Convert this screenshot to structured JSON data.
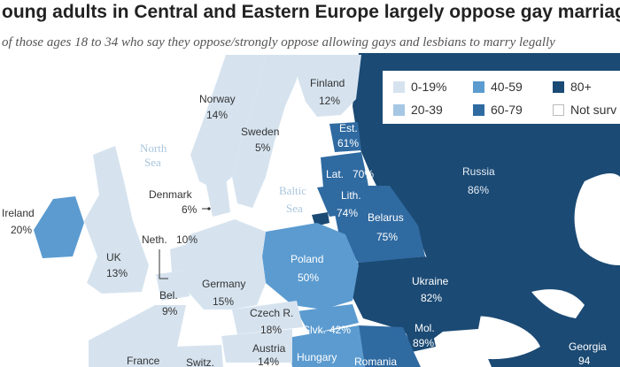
{
  "title": "oung adults in Central and Eastern Europe largely oppose gay marriage",
  "subtitle": "of those ages 18 to 34 who say they oppose/strongly oppose allowing gays and lesbians to marry legally",
  "legend": {
    "items": [
      {
        "label": "0-19%",
        "color": "#d6e3ef"
      },
      {
        "label": "40-59",
        "color": "#5b9bd0"
      },
      {
        "label": "80+",
        "color": "#1b4a74"
      },
      {
        "label": "20-39",
        "color": "#a6c7e4"
      },
      {
        "label": "60-79",
        "color": "#2f6aa1"
      },
      {
        "label": "Not surv",
        "color": "#ffffff"
      }
    ]
  },
  "seas": {
    "north": [
      "North",
      "Sea"
    ],
    "baltic": [
      "Baltic",
      "Sea"
    ]
  },
  "countries": [
    {
      "name": "Finland",
      "value": "12%",
      "bin": "0-19"
    },
    {
      "name": "Norway",
      "value": "14%",
      "bin": "0-19"
    },
    {
      "name": "Sweden",
      "value": "5%",
      "bin": "0-19"
    },
    {
      "name": "Est.",
      "value": "61%",
      "bin": "60-79"
    },
    {
      "name": "Lat.",
      "value": "70%",
      "bin": "60-79"
    },
    {
      "name": "Lith.",
      "value": "74%",
      "bin": "60-79"
    },
    {
      "name": "Russia",
      "value": "86%",
      "bin": "80+"
    },
    {
      "name": "Denmark",
      "value": "6%",
      "bin": "0-19"
    },
    {
      "name": "Ireland",
      "value": "20%",
      "bin": "20-39"
    },
    {
      "name": "Belarus",
      "value": "75%",
      "bin": "60-79"
    },
    {
      "name": "UK",
      "value": "13%",
      "bin": "0-19"
    },
    {
      "name": "Neth.",
      "value": "10%",
      "bin": "0-19"
    },
    {
      "name": "Poland",
      "value": "50%",
      "bin": "40-59"
    },
    {
      "name": "Germany",
      "value": "15%",
      "bin": "0-19"
    },
    {
      "name": "Bel.",
      "value": "9%",
      "bin": "0-19"
    },
    {
      "name": "Ukraine",
      "value": "82%",
      "bin": "80+"
    },
    {
      "name": "Czech R.",
      "value": "18%",
      "bin": "0-19"
    },
    {
      "name": "Slvk.",
      "value": "42%",
      "bin": "40-59"
    },
    {
      "name": "Mol.",
      "value": "89%",
      "bin": "80+"
    },
    {
      "name": "Austria",
      "value": "14%",
      "bin": "0-19"
    },
    {
      "name": "Hungary",
      "value": "",
      "bin": "40-59"
    },
    {
      "name": "France",
      "value": "",
      "bin": "0-19"
    },
    {
      "name": "Switz.",
      "value": "",
      "bin": "0-19"
    },
    {
      "name": "Romania",
      "value": "",
      "bin": "60-79"
    },
    {
      "name": "Georgia",
      "value": "94",
      "bin": "80+"
    }
  ]
}
